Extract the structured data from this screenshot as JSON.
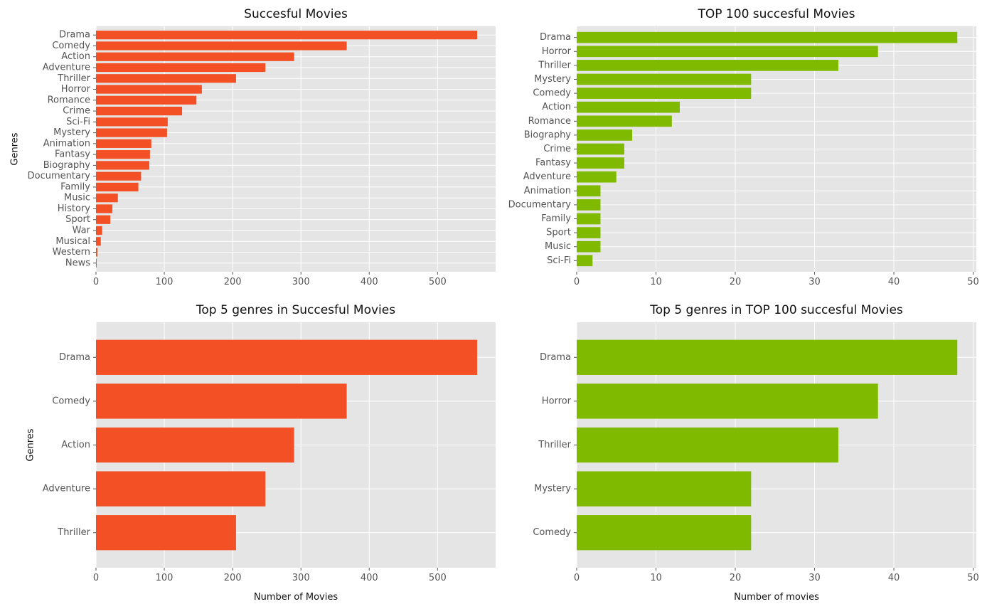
{
  "chart_data": [
    {
      "type": "bar",
      "orientation": "horizontal",
      "title": "Succesful Movies",
      "xlabel": "",
      "ylabel": "Genres",
      "color": "#f45025",
      "background": "#e5e5e5",
      "grid": true,
      "xlim": [
        0,
        585
      ],
      "xticks": [
        0,
        100,
        200,
        300,
        400,
        500
      ],
      "categories": [
        "Drama",
        "Comedy",
        "Action",
        "Adventure",
        "Thriller",
        "Horror",
        "Romance",
        "Crime",
        "Sci-Fi",
        "Mystery",
        "Animation",
        "Fantasy",
        "Biography",
        "Documentary",
        "Family",
        "Music",
        "History",
        "Sport",
        "War",
        "Musical",
        "Western",
        "News"
      ],
      "values": [
        558,
        367,
        290,
        248,
        205,
        155,
        147,
        126,
        105,
        104,
        81,
        79,
        78,
        66,
        62,
        32,
        24,
        21,
        9,
        7,
        2,
        1
      ]
    },
    {
      "type": "bar",
      "orientation": "horizontal",
      "title": "TOP 100 succesful Movies",
      "xlabel": "",
      "ylabel": "",
      "color": "#80ba00",
      "background": "#e5e5e5",
      "grid": true,
      "xlim": [
        0,
        50.4
      ],
      "xticks": [
        0,
        10,
        20,
        30,
        40,
        50
      ],
      "categories": [
        "Drama",
        "Horror",
        "Thriller",
        "Mystery",
        "Comedy",
        "Action",
        "Romance",
        "Biography",
        "Crime",
        "Fantasy",
        "Adventure",
        "Animation",
        "Documentary",
        "Family",
        "Sport",
        "Music",
        "Sci-Fi"
      ],
      "values": [
        48,
        38,
        33,
        22,
        22,
        13,
        12,
        7,
        6,
        6,
        5,
        3,
        3,
        3,
        3,
        3,
        2
      ]
    },
    {
      "type": "bar",
      "orientation": "horizontal",
      "title": "Top 5 genres in Succesful Movies",
      "xlabel": "Number of Movies",
      "ylabel": "Genres",
      "color": "#f45025",
      "background": "#e5e5e5",
      "grid": true,
      "xlim": [
        0,
        585
      ],
      "xticks": [
        0,
        100,
        200,
        300,
        400,
        500
      ],
      "categories": [
        "Drama",
        "Comedy",
        "Action",
        "Adventure",
        "Thriller"
      ],
      "values": [
        558,
        367,
        290,
        248,
        205
      ]
    },
    {
      "type": "bar",
      "orientation": "horizontal",
      "title": "Top 5 genres in TOP 100 succesful Movies",
      "xlabel": "Number of movies",
      "ylabel": "",
      "color": "#80ba00",
      "background": "#e5e5e5",
      "grid": true,
      "xlim": [
        0,
        50.4
      ],
      "xticks": [
        0,
        10,
        20,
        30,
        40,
        50
      ],
      "categories": [
        "Drama",
        "Horror",
        "Thriller",
        "Mystery",
        "Comedy"
      ],
      "values": [
        48,
        38,
        33,
        22,
        22
      ]
    }
  ]
}
